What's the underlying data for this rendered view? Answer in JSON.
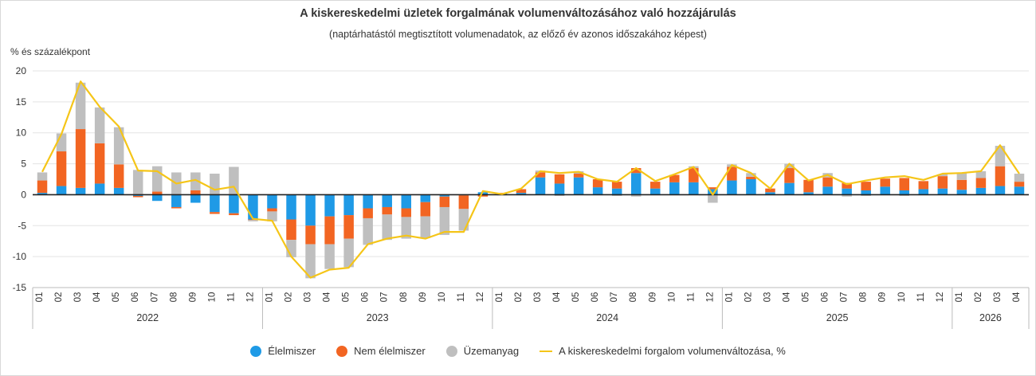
{
  "chart_data": {
    "type": "bar",
    "stacked": true,
    "title": "A kiskereskedelmi üzletek forgalmának volumenváltozásához való hozzájárulás",
    "subtitle": "(naptárhatástól megtisztított volumenadatok, az előző év azonos időszakához képest)",
    "ylabel": "% és százalékpont",
    "ylim": [
      -15,
      20
    ],
    "yticks": [
      -15,
      -10,
      -5,
      0,
      5,
      10,
      15,
      20
    ],
    "grid": true,
    "legend_position": "bottom",
    "categories": [
      "01",
      "02",
      "03",
      "04",
      "05",
      "06",
      "07",
      "08",
      "09",
      "10",
      "11",
      "12",
      "01",
      "02",
      "03",
      "04",
      "05",
      "06",
      "07",
      "08",
      "09",
      "10",
      "11",
      "12",
      "01",
      "02",
      "03",
      "04",
      "05",
      "06",
      "07",
      "08",
      "09",
      "10",
      "11",
      "12",
      "01",
      "02",
      "03",
      "04",
      "05",
      "06",
      "07",
      "08",
      "09",
      "10",
      "11",
      "12",
      "01",
      "02",
      "03",
      "04"
    ],
    "years": [
      {
        "label": "2022",
        "count": 12
      },
      {
        "label": "2023",
        "count": 12
      },
      {
        "label": "2024",
        "count": 12
      },
      {
        "label": "2025",
        "count": 12
      },
      {
        "label": "2026",
        "count": 4
      }
    ],
    "series": [
      {
        "name": "Élelmiszer",
        "type": "bar",
        "color": "#1f9ae6",
        "values": [
          0.3,
          1.4,
          1.1,
          1.8,
          1.1,
          -0.2,
          -1.0,
          -2.0,
          -1.3,
          -2.8,
          -3.0,
          -4.0,
          -2.2,
          -4.0,
          -5.0,
          -3.5,
          -3.3,
          -2.2,
          -2.0,
          -2.2,
          -1.2,
          -0.3,
          -0.1,
          0.4,
          0.2,
          0.3,
          2.8,
          1.8,
          2.8,
          1.2,
          1.0,
          3.5,
          1.0,
          2.0,
          2.0,
          0.9,
          2.3,
          2.5,
          0.4,
          1.9,
          0.4,
          1.3,
          1.0,
          0.7,
          1.3,
          0.7,
          0.9,
          1.0,
          0.8,
          1.1,
          1.4,
          1.3
        ]
      },
      {
        "name": "Nem élelmiszer",
        "type": "bar",
        "color": "#f26522",
        "values": [
          2.0,
          5.6,
          9.5,
          6.5,
          3.8,
          -0.2,
          0.5,
          -0.2,
          0.7,
          -0.3,
          -0.3,
          -0.1,
          -0.5,
          -3.3,
          -3.0,
          -4.5,
          -3.8,
          -1.6,
          -1.2,
          -1.4,
          -2.3,
          -1.7,
          -2.2,
          -0.3,
          0.1,
          0.6,
          0.8,
          1.5,
          0.6,
          1.3,
          1.1,
          0.8,
          1.1,
          1.2,
          2.3,
          0.3,
          2.2,
          0.4,
          0.6,
          2.4,
          2.0,
          1.5,
          0.9,
          1.4,
          1.3,
          2.0,
          1.3,
          2.0,
          1.6,
          1.6,
          3.2,
          0.8
        ]
      },
      {
        "name": "Üzemanyag",
        "type": "bar",
        "color": "#bfbfbf",
        "values": [
          1.3,
          2.9,
          7.5,
          5.8,
          6.0,
          4.0,
          4.1,
          3.6,
          2.9,
          3.4,
          4.5,
          -0.2,
          -1.6,
          -2.8,
          -5.5,
          -4.0,
          -4.6,
          -4.3,
          -4.1,
          -3.5,
          -3.5,
          -4.5,
          -3.5,
          0.0,
          -0.1,
          -0.1,
          0.3,
          -0.2,
          0.4,
          -0.1,
          -0.2,
          -0.3,
          -0.1,
          -0.1,
          0.3,
          -1.3,
          0.4,
          0.6,
          -0.1,
          0.7,
          -0.1,
          0.7,
          -0.3,
          -0.2,
          -0.1,
          -0.2,
          -0.1,
          0.3,
          1.1,
          1.1,
          3.3,
          1.3
        ]
      },
      {
        "name": "A kiskereskedelmi forgalom volumenváltozása, %",
        "type": "line",
        "color": "#f5c518",
        "values": [
          3.7,
          9.8,
          18.3,
          14.2,
          11.0,
          3.9,
          3.8,
          1.8,
          2.4,
          0.8,
          1.3,
          -3.9,
          -4.2,
          -10.0,
          -13.4,
          -12.1,
          -11.8,
          -8.0,
          -7.1,
          -6.6,
          -7.1,
          -6.0,
          -6.0,
          0.6,
          0.1,
          1.0,
          3.8,
          3.5,
          3.7,
          2.5,
          2.1,
          4.3,
          2.2,
          3.3,
          4.5,
          0.0,
          4.8,
          3.5,
          1.0,
          5.0,
          2.3,
          3.2,
          1.7,
          2.3,
          2.8,
          3.0,
          2.4,
          3.4,
          3.5,
          3.8,
          8.0,
          3.4
        ]
      }
    ]
  }
}
